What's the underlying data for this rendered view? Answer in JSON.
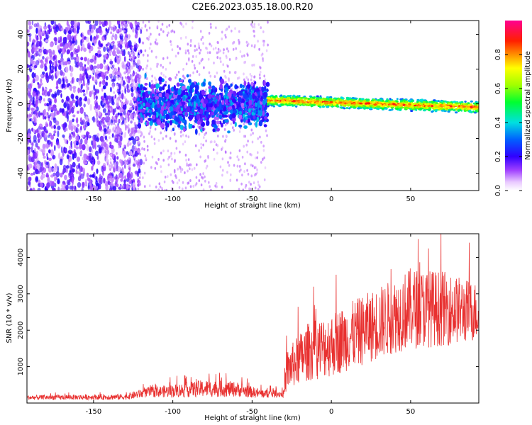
{
  "chart_data": [
    {
      "type": "heatmap",
      "title": "C2E6.2023.035.18.00.R20",
      "xlabel": "Height of straight line (km)",
      "ylabel": "Frequency (Hz)",
      "xlim": [
        -192,
        93
      ],
      "ylim": [
        -50,
        48
      ],
      "xticks": [
        -150,
        -100,
        -50,
        0,
        50
      ],
      "yticks": [
        -40,
        -20,
        0,
        20,
        40
      ],
      "colorbar": {
        "label": "Normalized spectral amplitude",
        "range": [
          0,
          1
        ],
        "ticks": [
          0.0,
          0.2,
          0.4,
          0.6,
          0.8
        ]
      },
      "regions": [
        {
          "x_range": [
            -192,
            -120
          ],
          "freq_spread": [
            -50,
            48
          ],
          "amplitude": [
            0.05,
            0.2
          ],
          "description_only": true
        },
        {
          "x_range": [
            -120,
            -40
          ],
          "freq_center": 0,
          "freq_halfwidth": 12,
          "amplitude": [
            0.1,
            0.35
          ]
        },
        {
          "x_range": [
            -40,
            93
          ],
          "freq_center_start": 2,
          "freq_center_end": -2,
          "freq_halfwidth": 3,
          "amplitude": [
            0.3,
            0.9
          ]
        }
      ]
    },
    {
      "type": "line",
      "title": "",
      "xlabel": "Height of straight line (km)",
      "ylabel": "SNR (10 * v/v)",
      "xlim": [
        -192,
        93
      ],
      "ylim": [
        0,
        4650
      ],
      "xticks": [
        -150,
        -100,
        -50,
        0,
        50
      ],
      "yticks": [
        1000,
        2000,
        3000,
        4000
      ],
      "color": "#e8302f",
      "envelope": [
        {
          "x": -192,
          "mean": 150,
          "spread": 80
        },
        {
          "x": -130,
          "mean": 170,
          "spread": 100
        },
        {
          "x": -115,
          "mean": 300,
          "spread": 180
        },
        {
          "x": -100,
          "mean": 330,
          "spread": 220
        },
        {
          "x": -80,
          "mean": 400,
          "spread": 300
        },
        {
          "x": -60,
          "mean": 380,
          "spread": 260
        },
        {
          "x": -45,
          "mean": 260,
          "spread": 160
        },
        {
          "x": -30,
          "mean": 250,
          "spread": 120
        },
        {
          "x": -28,
          "mean": 900,
          "spread": 700
        },
        {
          "x": -15,
          "mean": 1400,
          "spread": 1000
        },
        {
          "x": 0,
          "mean": 1600,
          "spread": 1100
        },
        {
          "x": 20,
          "mean": 2000,
          "spread": 1200
        },
        {
          "x": 40,
          "mean": 2400,
          "spread": 1300
        },
        {
          "x": 50,
          "mean": 2600,
          "spread": 1400
        },
        {
          "x": 70,
          "mean": 2600,
          "spread": 1300
        },
        {
          "x": 93,
          "mean": 2500,
          "spread": 1000
        }
      ]
    }
  ]
}
